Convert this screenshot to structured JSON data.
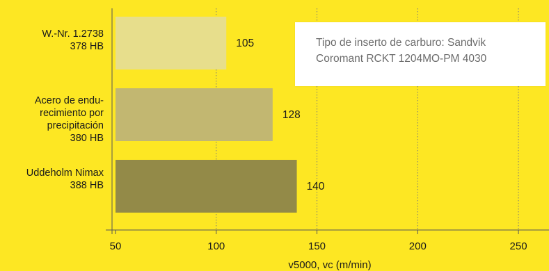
{
  "chart_data": {
    "type": "bar",
    "orientation": "horizontal",
    "categories": [
      [
        "W.-Nr. 1.2738",
        "378 HB"
      ],
      [
        "Acero de endu-",
        "recimiento por",
        "precipitación",
        "380 HB"
      ],
      [
        "Uddeholm Nimax",
        "388 HB"
      ]
    ],
    "values": [
      105,
      128,
      140
    ],
    "bar_colors": [
      "#e7de8c",
      "#c2b771",
      "#938a48"
    ],
    "xlabel": "v5000, vc (m/min)",
    "xlim": [
      50,
      260
    ],
    "xticks": [
      50,
      100,
      150,
      200,
      250
    ],
    "grid": "vertical dotted",
    "note": [
      "Tipo de inserto de carburo: Sandvik",
      "Coromant RCKT 1204MO-PM 4030"
    ]
  }
}
